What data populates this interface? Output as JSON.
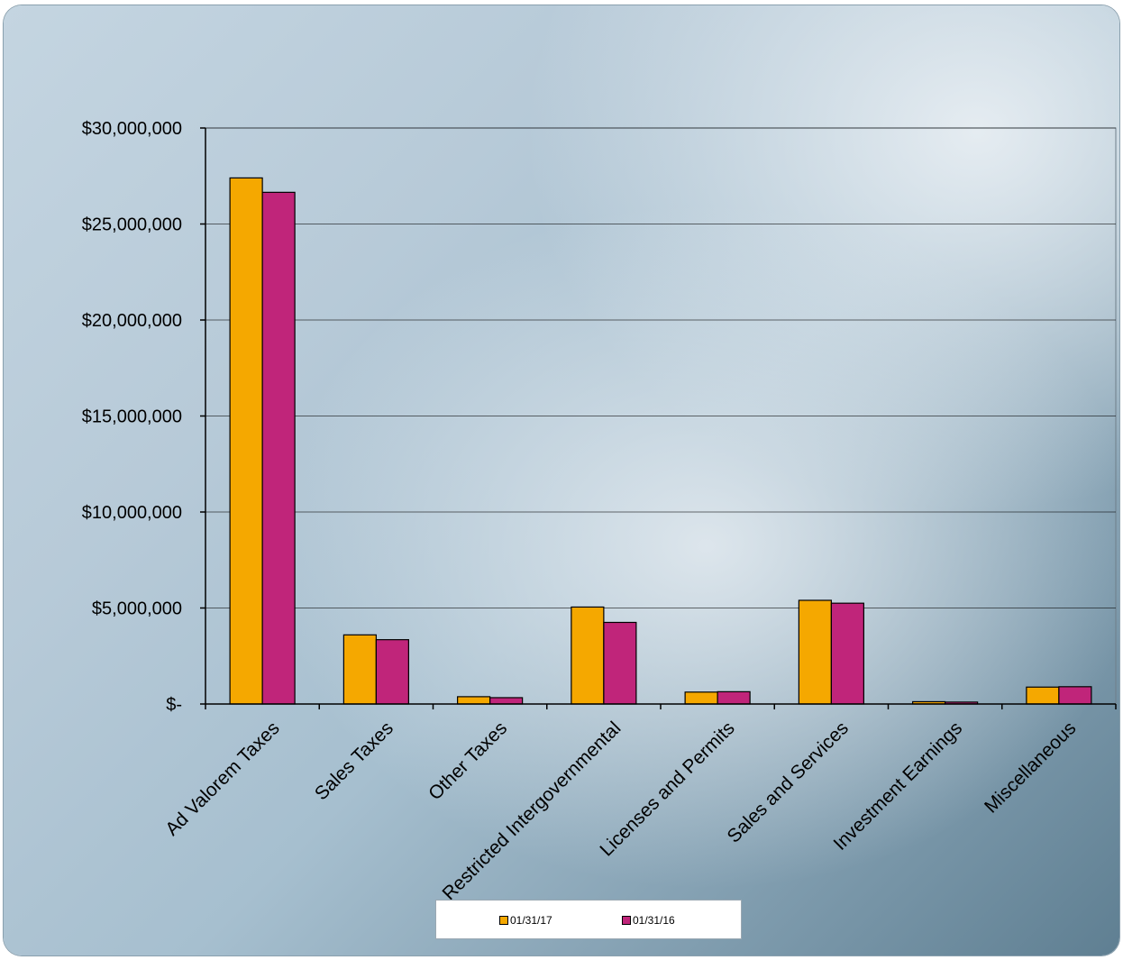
{
  "colors": {
    "series1": "#F5A800",
    "series2": "#C0257A",
    "axis": "#000000",
    "grid": "#000000"
  },
  "chart_data": {
    "type": "bar",
    "categories": [
      "Ad Valorem Taxes",
      "Sales Taxes",
      "Other Taxes",
      "Restricted Intergovernmental",
      "Licenses and Permits",
      "Sales and Services",
      "Investment Earnings",
      "Miscellaneous"
    ],
    "series": [
      {
        "name": "01/31/17",
        "color": "#F5A800",
        "values": [
          27400000,
          3600000,
          380000,
          5050000,
          620000,
          5400000,
          120000,
          880000
        ]
      },
      {
        "name": "01/31/16",
        "color": "#C0257A",
        "values": [
          26650000,
          3350000,
          330000,
          4250000,
          640000,
          5250000,
          100000,
          900000
        ]
      }
    ],
    "ylim": [
      0,
      30000000
    ],
    "yticks": [
      {
        "value": 0,
        "label": "$-"
      },
      {
        "value": 5000000,
        "label": "$5,000,000"
      },
      {
        "value": 10000000,
        "label": "$10,000,000"
      },
      {
        "value": 15000000,
        "label": "$15,000,000"
      },
      {
        "value": 20000000,
        "label": "$20,000,000"
      },
      {
        "value": 25000000,
        "label": "$25,000,000"
      },
      {
        "value": 30000000,
        "label": "$30,000,000"
      }
    ],
    "grid": true,
    "legend_position": "bottom",
    "title": "",
    "xlabel": "",
    "ylabel": ""
  }
}
